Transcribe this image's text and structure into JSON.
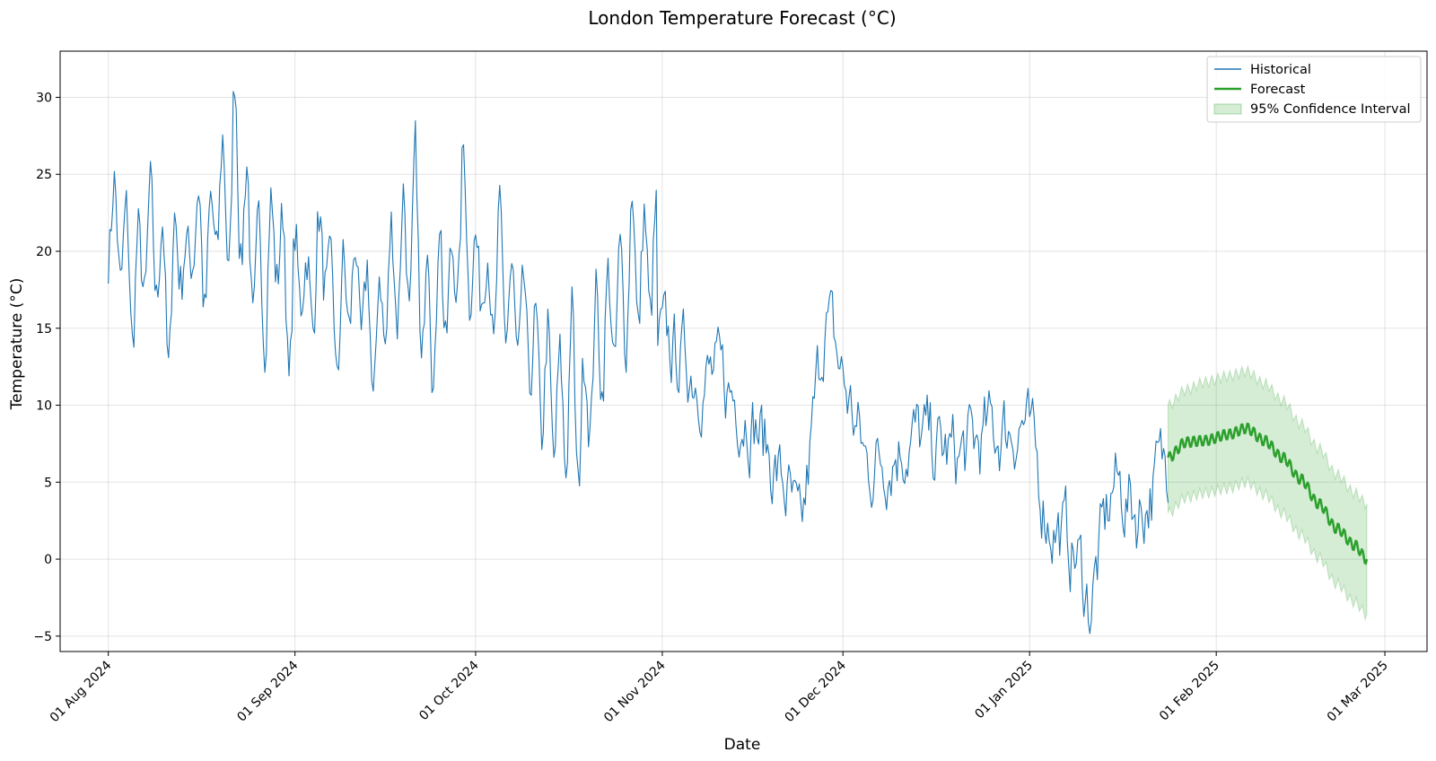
{
  "chart_data": {
    "type": "line",
    "title": "London Temperature Forecast (°C)",
    "xlabel": "Date",
    "ylabel": "Temperature (°C)",
    "x_range": [
      "2024-07-24",
      "2025-03-08"
    ],
    "ylim": [
      -6,
      33
    ],
    "grid": true,
    "legend_position": "top-right",
    "x_ticks": [
      {
        "date": "2024-08-01",
        "label": "01 Aug 2024"
      },
      {
        "date": "2024-09-01",
        "label": "01 Sep 2024"
      },
      {
        "date": "2024-10-01",
        "label": "01 Oct 2024"
      },
      {
        "date": "2024-11-01",
        "label": "01 Nov 2024"
      },
      {
        "date": "2024-12-01",
        "label": "01 Dec 2024"
      },
      {
        "date": "2025-01-01",
        "label": "01 Jan 2025"
      },
      {
        "date": "2025-02-01",
        "label": "01 Feb 2025"
      },
      {
        "date": "2025-03-01",
        "label": "01 Mar 2025"
      }
    ],
    "y_ticks": [
      {
        "value": -5,
        "label": "−5"
      },
      {
        "value": 0,
        "label": "0"
      },
      {
        "value": 5,
        "label": "5"
      },
      {
        "value": 10,
        "label": "10"
      },
      {
        "value": 15,
        "label": "15"
      },
      {
        "value": 20,
        "label": "20"
      },
      {
        "value": 25,
        "label": "25"
      },
      {
        "value": 30,
        "label": "30"
      }
    ],
    "series": [
      {
        "name": "Historical",
        "color": "#1f77b4",
        "style": "line",
        "points": [
          [
            "2024-08-01",
            19.4
          ],
          [
            "2024-08-02",
            24.5
          ],
          [
            "2024-08-03",
            18.0
          ],
          [
            "2024-08-04",
            23.0
          ],
          [
            "2024-08-05",
            14.0
          ],
          [
            "2024-08-06",
            21.5
          ],
          [
            "2024-08-07",
            17.0
          ],
          [
            "2024-08-08",
            24.6
          ],
          [
            "2024-08-09",
            16.8
          ],
          [
            "2024-08-10",
            21.8
          ],
          [
            "2024-08-11",
            12.4
          ],
          [
            "2024-08-12",
            22.3
          ],
          [
            "2024-08-13",
            17.8
          ],
          [
            "2024-08-14",
            20.6
          ],
          [
            "2024-08-15",
            19.0
          ],
          [
            "2024-08-16",
            24.1
          ],
          [
            "2024-08-17",
            16.0
          ],
          [
            "2024-08-18",
            23.5
          ],
          [
            "2024-08-19",
            20.0
          ],
          [
            "2024-08-20",
            27.3
          ],
          [
            "2024-08-21",
            18.5
          ],
          [
            "2024-08-22",
            31.3
          ],
          [
            "2024-08-23",
            19.0
          ],
          [
            "2024-08-24",
            25.6
          ],
          [
            "2024-08-25",
            15.5
          ],
          [
            "2024-08-26",
            22.5
          ],
          [
            "2024-08-27",
            13.4
          ],
          [
            "2024-08-28",
            23.4
          ],
          [
            "2024-08-29",
            18.0
          ],
          [
            "2024-08-30",
            22.6
          ],
          [
            "2024-08-31",
            11.5
          ],
          [
            "2024-09-01",
            21.0
          ],
          [
            "2024-09-02",
            16.5
          ],
          [
            "2024-09-03",
            19.5
          ],
          [
            "2024-09-04",
            15.0
          ],
          [
            "2024-09-05",
            22.4
          ],
          [
            "2024-09-06",
            17.5
          ],
          [
            "2024-09-07",
            20.0
          ],
          [
            "2024-09-08",
            11.4
          ],
          [
            "2024-09-09",
            19.6
          ],
          [
            "2024-09-10",
            15.0
          ],
          [
            "2024-09-11",
            20.5
          ],
          [
            "2024-09-12",
            14.5
          ],
          [
            "2024-09-13",
            19.0
          ],
          [
            "2024-09-14",
            10.1
          ],
          [
            "2024-09-15",
            18.5
          ],
          [
            "2024-09-16",
            13.8
          ],
          [
            "2024-09-17",
            21.8
          ],
          [
            "2024-09-18",
            15.2
          ],
          [
            "2024-09-19",
            23.9
          ],
          [
            "2024-09-20",
            15.8
          ],
          [
            "2024-09-21",
            27.1
          ],
          [
            "2024-09-22",
            12.4
          ],
          [
            "2024-09-23",
            21.0
          ],
          [
            "2024-09-24",
            10.8
          ],
          [
            "2024-09-25",
            22.0
          ],
          [
            "2024-09-26",
            14.0
          ],
          [
            "2024-09-27",
            20.3
          ],
          [
            "2024-09-28",
            17.0
          ],
          [
            "2024-09-29",
            26.9
          ],
          [
            "2024-09-30",
            16.5
          ],
          [
            "2024-10-01",
            20.9
          ],
          [
            "2024-10-02",
            16.8
          ],
          [
            "2024-10-03",
            19.5
          ],
          [
            "2024-10-04",
            13.8
          ],
          [
            "2024-10-05",
            22.9
          ],
          [
            "2024-10-06",
            14.5
          ],
          [
            "2024-10-07",
            19.0
          ],
          [
            "2024-10-08",
            13.2
          ],
          [
            "2024-10-09",
            18.4
          ],
          [
            "2024-10-10",
            11.2
          ],
          [
            "2024-10-11",
            16.0
          ],
          [
            "2024-10-12",
            8.0
          ],
          [
            "2024-10-13",
            15.0
          ],
          [
            "2024-10-14",
            6.5
          ],
          [
            "2024-10-15",
            13.5
          ],
          [
            "2024-10-16",
            5.6
          ],
          [
            "2024-10-17",
            16.5
          ],
          [
            "2024-10-18",
            4.7
          ],
          [
            "2024-10-19",
            13.0
          ],
          [
            "2024-10-20",
            8.0
          ],
          [
            "2024-10-21",
            17.5
          ],
          [
            "2024-10-22",
            10.5
          ],
          [
            "2024-10-23",
            18.8
          ],
          [
            "2024-10-24",
            12.5
          ],
          [
            "2024-10-25",
            20.5
          ],
          [
            "2024-10-26",
            13.5
          ],
          [
            "2024-10-27",
            24.0
          ],
          [
            "2024-10-28",
            15.0
          ],
          [
            "2024-10-29",
            22.5
          ],
          [
            "2024-10-30",
            16.0
          ],
          [
            "2024-10-31",
            23.0
          ]
        ]
      },
      {
        "name": "Forecast",
        "color": "#2ca02c",
        "style": "line",
        "points": [
          [
            "2025-01-24",
            6.6
          ],
          [
            "2025-01-27",
            7.6
          ],
          [
            "2025-01-30",
            7.7
          ],
          [
            "2025-02-03",
            8.1
          ],
          [
            "2025-02-06",
            8.5
          ],
          [
            "2025-02-09",
            7.7
          ],
          [
            "2025-02-12",
            6.6
          ],
          [
            "2025-02-15",
            5.2
          ],
          [
            "2025-02-18",
            3.6
          ],
          [
            "2025-02-21",
            2.0
          ],
          [
            "2025-02-24",
            0.9
          ],
          [
            "2025-02-26",
            0.0
          ]
        ]
      },
      {
        "name": "95% Confidence Interval",
        "color": "#2ca02c",
        "style": "band",
        "points": [
          [
            "2025-01-24",
            3.0,
            10.0
          ],
          [
            "2025-01-27",
            4.0,
            11.0
          ],
          [
            "2025-01-30",
            4.3,
            11.5
          ],
          [
            "2025-02-03",
            4.6,
            11.9
          ],
          [
            "2025-02-06",
            5.0,
            12.2
          ],
          [
            "2025-02-09",
            4.2,
            11.4
          ],
          [
            "2025-02-12",
            3.0,
            10.3
          ],
          [
            "2025-02-15",
            1.6,
            8.8
          ],
          [
            "2025-02-18",
            0.1,
            7.2
          ],
          [
            "2025-02-21",
            -1.6,
            5.5
          ],
          [
            "2025-02-24",
            -2.8,
            4.3
          ],
          [
            "2025-02-26",
            -3.6,
            3.6
          ]
        ]
      }
    ]
  }
}
